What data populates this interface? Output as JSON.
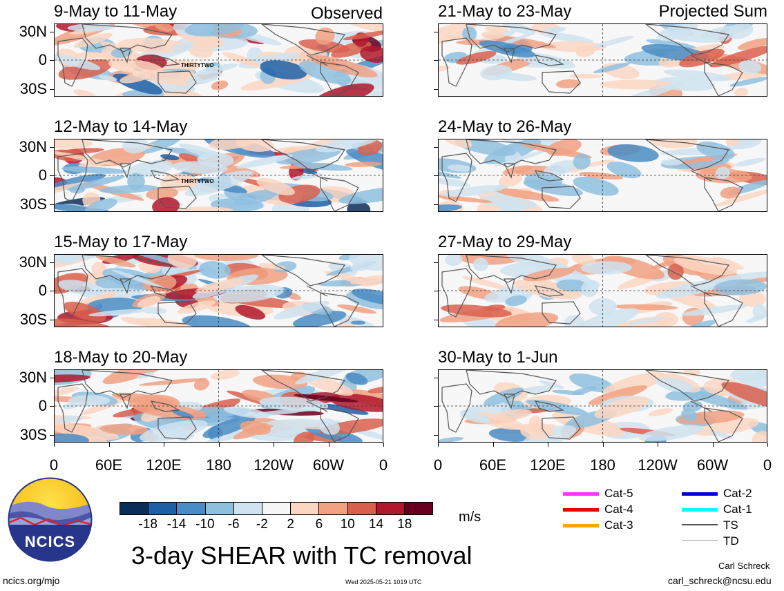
{
  "header": {
    "observed": "Observed",
    "projected": "Projected Sum"
  },
  "panels_left": [
    {
      "title": "9-May to 11-May",
      "tc_label": "THIRTYTWO"
    },
    {
      "title": "12-May to 14-May",
      "tc_label": "THIRTYTWO"
    },
    {
      "title": "15-May to 17-May",
      "tc_label": ""
    },
    {
      "title": "18-May to 20-May",
      "tc_label": ""
    }
  ],
  "panels_right": [
    {
      "title": "21-May to 23-May"
    },
    {
      "title": "24-May to 26-May"
    },
    {
      "title": "27-May to 29-May"
    },
    {
      "title": "30-May to 1-Jun"
    }
  ],
  "lat_labels": [
    "30N",
    "0",
    "30S"
  ],
  "lon_labels": [
    "0",
    "60E",
    "120E",
    "180",
    "120W",
    "60W",
    "0"
  ],
  "colorbar": {
    "unit": "m/s",
    "labels": [
      "-18",
      "-14",
      "-10",
      "-6",
      "-2",
      "2",
      "6",
      "10",
      "14",
      "18"
    ],
    "colors": [
      "#0b2e59",
      "#1f5fa6",
      "#4a8cc4",
      "#8fbfdf",
      "#cfe3f0",
      "#f7f7f7",
      "#fbd6c2",
      "#f1a182",
      "#d9604e",
      "#b2182b",
      "#67001f"
    ]
  },
  "legend": [
    {
      "label": "Cat-5",
      "color": "#ff33ff"
    },
    {
      "label": "Cat-4",
      "color": "#ee0000"
    },
    {
      "label": "Cat-3",
      "color": "#ffa500"
    },
    {
      "label": "Cat-2",
      "color": "#0000dd"
    },
    {
      "label": "Cat-1",
      "color": "#00ffff"
    },
    {
      "label": "TS",
      "color": "#555555"
    },
    {
      "label": "TD",
      "color": "#aaaaaa"
    }
  ],
  "logo": {
    "text": "NCICS"
  },
  "main_title": "3-day SHEAR with TC removal",
  "footer": {
    "left": "ncics.org/mjo",
    "timestamp": "Wed 2025-05-21 1019 UTC",
    "author": "Carl Schreck",
    "email": "carl_schreck@ncsu.edu"
  }
}
